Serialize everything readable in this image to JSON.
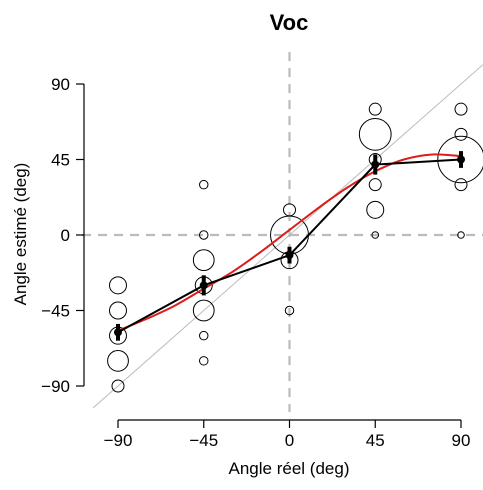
{
  "chart_data": {
    "type": "scatter",
    "title": "Voc",
    "xlabel": "Angle réel (deg)",
    "ylabel": "Angle estimé (deg)",
    "xlim": [
      -90,
      90
    ],
    "ylim": [
      -90,
      90
    ],
    "x_ticks": [
      -90,
      -45,
      0,
      45,
      90
    ],
    "y_ticks": [
      -90,
      -45,
      0,
      45,
      90
    ],
    "x_tick_labels": [
      "−90",
      "−45",
      "0",
      "45",
      "90"
    ],
    "y_tick_labels": [
      "−90",
      "−45",
      "0",
      "45",
      "90"
    ],
    "reference_lines": {
      "x": 0,
      "y": 0,
      "style": "dashed",
      "color": "#bbbbbb"
    },
    "identity_line": {
      "color": "#bbbbbb"
    },
    "bubbles": [
      {
        "x": -90,
        "y": -30,
        "size": 2
      },
      {
        "x": -90,
        "y": -45,
        "size": 2
      },
      {
        "x": -90,
        "y": -60,
        "size": 2
      },
      {
        "x": -90,
        "y": -75,
        "size": 3
      },
      {
        "x": -90,
        "y": -90,
        "size": 1
      },
      {
        "x": -45,
        "y": 30,
        "size": 0.5
      },
      {
        "x": -45,
        "y": 0,
        "size": 0.5
      },
      {
        "x": -45,
        "y": -15,
        "size": 3
      },
      {
        "x": -45,
        "y": -30,
        "size": 2
      },
      {
        "x": -45,
        "y": -45,
        "size": 3
      },
      {
        "x": -45,
        "y": -60,
        "size": 0.5
      },
      {
        "x": -45,
        "y": -75,
        "size": 0.5
      },
      {
        "x": 0,
        "y": 15,
        "size": 1
      },
      {
        "x": 0,
        "y": 0,
        "size": 10
      },
      {
        "x": 0,
        "y": -15,
        "size": 2
      },
      {
        "x": 0,
        "y": -45,
        "size": 0.5
      },
      {
        "x": 45,
        "y": 75,
        "size": 1
      },
      {
        "x": 45,
        "y": 60,
        "size": 7
      },
      {
        "x": 45,
        "y": 45,
        "size": 1
      },
      {
        "x": 45,
        "y": 30,
        "size": 1
      },
      {
        "x": 45,
        "y": 15,
        "size": 2
      },
      {
        "x": 45,
        "y": 0,
        "size": 0.3
      },
      {
        "x": 90,
        "y": 75,
        "size": 1
      },
      {
        "x": 90,
        "y": 60,
        "size": 1
      },
      {
        "x": 90,
        "y": 45,
        "size": 15
      },
      {
        "x": 90,
        "y": 30,
        "size": 1
      },
      {
        "x": 90,
        "y": 0,
        "size": 0.3
      }
    ],
    "mean_series": {
      "color": "#000000",
      "points": [
        {
          "x": -90,
          "y": -58,
          "err": 5
        },
        {
          "x": -45,
          "y": -30,
          "err": 6
        },
        {
          "x": 0,
          "y": -12,
          "err": 5
        },
        {
          "x": 45,
          "y": 42,
          "err": 6
        },
        {
          "x": 90,
          "y": 45,
          "err": 5
        }
      ]
    },
    "fit_curve": {
      "color": "#dd1c1c",
      "points": [
        {
          "x": -90,
          "y": -57
        },
        {
          "x": -75,
          "y": -50
        },
        {
          "x": -60,
          "y": -42
        },
        {
          "x": -45,
          "y": -32
        },
        {
          "x": -30,
          "y": -22
        },
        {
          "x": -15,
          "y": -10
        },
        {
          "x": 0,
          "y": 3
        },
        {
          "x": 15,
          "y": 16
        },
        {
          "x": 30,
          "y": 28
        },
        {
          "x": 45,
          "y": 38
        },
        {
          "x": 60,
          "y": 45
        },
        {
          "x": 75,
          "y": 48
        },
        {
          "x": 90,
          "y": 47
        }
      ]
    }
  }
}
